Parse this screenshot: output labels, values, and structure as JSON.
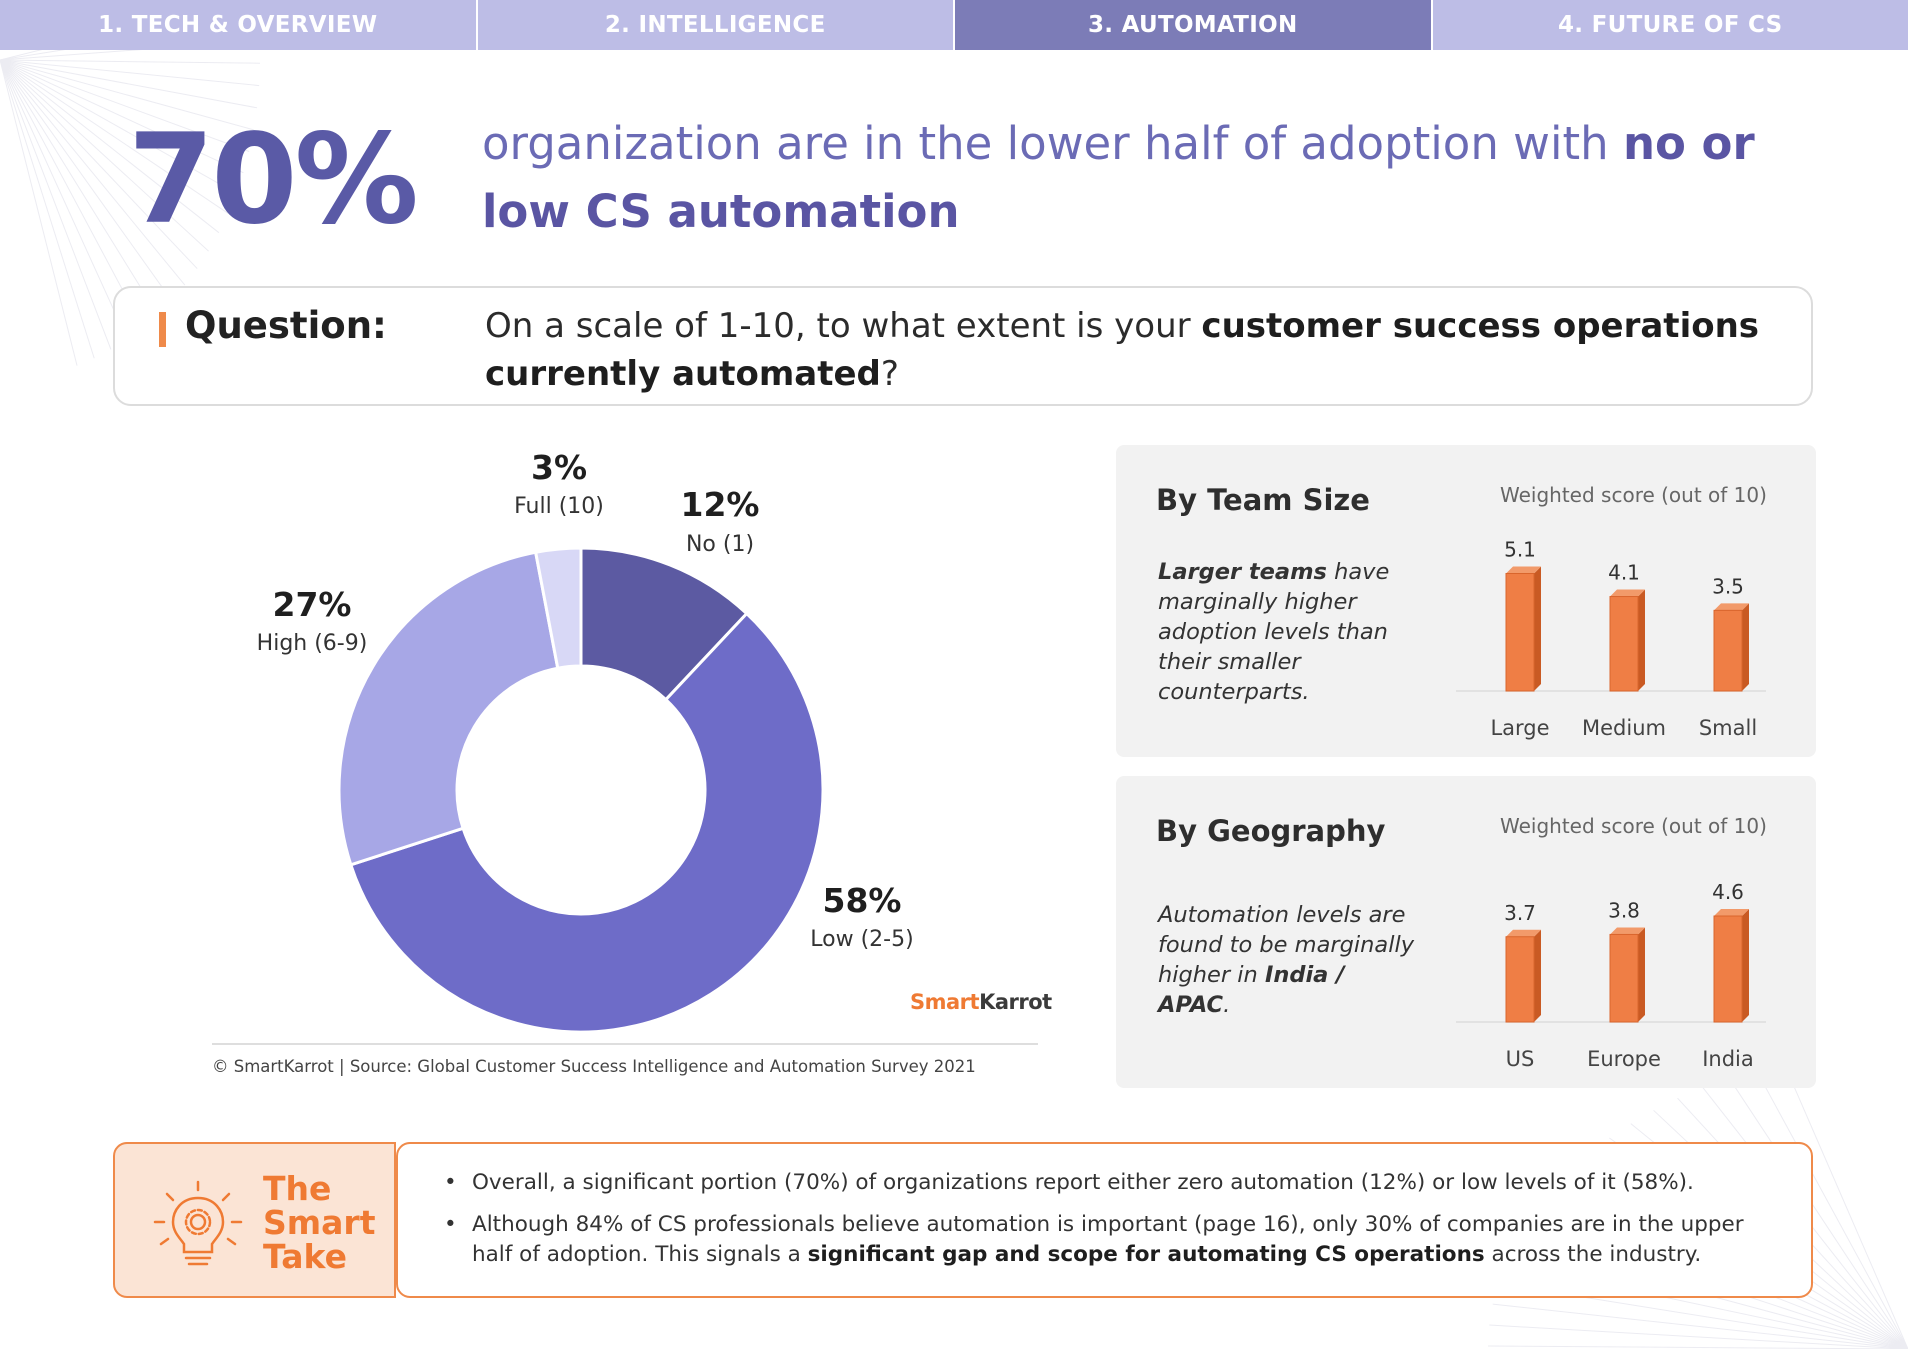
{
  "nav": {
    "tabs": [
      {
        "label": "1. TECH & OVERVIEW",
        "active": false
      },
      {
        "label": "2. INTELLIGENCE",
        "active": false
      },
      {
        "label": "3. AUTOMATION",
        "active": true
      },
      {
        "label": "4. FUTURE OF CS",
        "active": false
      }
    ]
  },
  "headline": {
    "stat": "70%",
    "text_regular": "organization are in the lower half of adoption with ",
    "text_bold": "no or low CS automation"
  },
  "question": {
    "label": "Question:",
    "text_a": "On a scale of 1-10, to what extent is your ",
    "text_bold": "customer success operations currently automated",
    "text_b": "?"
  },
  "source": "© SmartKarrot | Source: Global Customer Success Intelligence and Automation Survey 2021",
  "logo": {
    "part1": "Smart",
    "part2": "Karr",
    "part3": "ot"
  },
  "chart_data": [
    {
      "type": "pie",
      "variant": "donut",
      "categories": [
        "No (1)",
        "Low (2-5)",
        "High (6-9)",
        "Full (10)"
      ],
      "values": [
        12,
        58,
        27,
        3
      ],
      "value_labels": [
        "12%",
        "58%",
        "27%",
        "3%"
      ],
      "colors": [
        "#5c5aa2",
        "#6e6cc8",
        "#a7a7e6",
        "#d8d8f6"
      ]
    },
    {
      "type": "bar",
      "title": "By Team Size",
      "ylabel": "Weighted score (out of 10)",
      "categories": [
        "Large",
        "Medium",
        "Small"
      ],
      "values": [
        5.1,
        4.1,
        3.5
      ],
      "value_labels": [
        "5.1",
        "4.1",
        "3.5"
      ],
      "note_bold": "Larger teams",
      "note_text": " have marginally higher adoption levels than their smaller counterparts.",
      "color": "#ef7e45"
    },
    {
      "type": "bar",
      "title": "By Geography",
      "ylabel": "Weighted score (out of 10)",
      "categories": [
        "US",
        "Europe",
        "India"
      ],
      "values": [
        3.7,
        3.8,
        4.6
      ],
      "value_labels": [
        "3.7",
        "3.8",
        "4.6"
      ],
      "note_text": "Automation levels are found to be marginally higher in ",
      "note_bold": "India / APAC",
      "note_end": ".",
      "color": "#ef7e45"
    }
  ],
  "smart_take": {
    "title_lines": [
      "The",
      "Smart",
      "Take"
    ],
    "bullets": [
      {
        "text": "Overall, a significant portion (70%) of organizations report either zero automation (12%) or low levels of it (58%).",
        "bold": "",
        "tail": ""
      },
      {
        "text": "Although 84% of CS professionals believe automation is important (page 16), only 30% of companies are in the upper half of adoption. This signals a ",
        "bold": "significant gap and scope for automating CS operations",
        "tail": " across the industry."
      }
    ]
  }
}
